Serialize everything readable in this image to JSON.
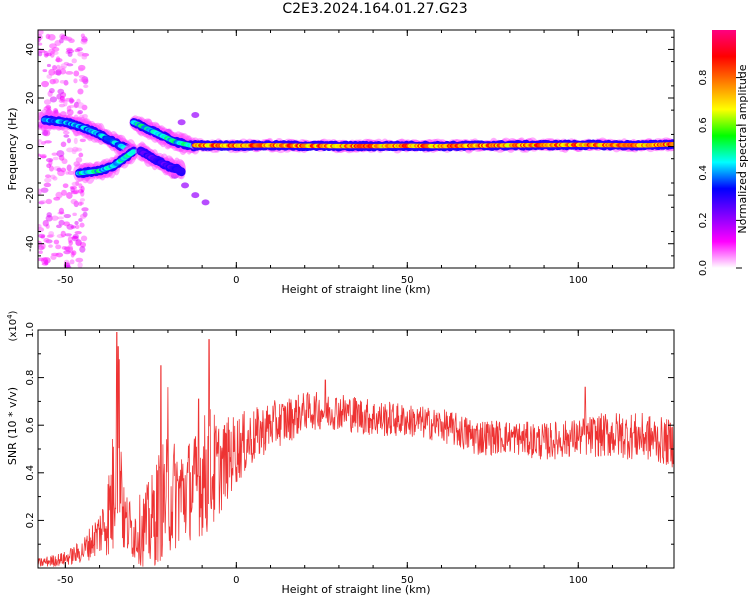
{
  "title": "C2E3.2024.164.01.27.G23",
  "chart_data": [
    {
      "type": "heatmap",
      "xlabel": "Height of straight line (km)",
      "ylabel": "Frequency (Hz)",
      "xlim": [
        -58,
        128
      ],
      "ylim": [
        -50,
        48
      ],
      "xticks": [
        -50,
        0,
        50,
        100
      ],
      "yticks": [
        -40,
        -20,
        0,
        20,
        40
      ],
      "colorbar": {
        "label": "Normalized spectral amplitude",
        "range": [
          0,
          1
        ],
        "ticks": [
          "0.0",
          "0.2",
          "0.4",
          "0.6",
          "0.8"
        ],
        "colors": [
          "#ffffff",
          "#ff00ff",
          "#8000ff",
          "#0000ff",
          "#00ffff",
          "#00ff00",
          "#ffff00",
          "#ff8000",
          "#ff0000",
          "#ff0080"
        ]
      },
      "ridges": [
        {
          "x": [
            -56,
            -50,
            -45,
            -40,
            -36,
            -32,
            -30
          ],
          "y": [
            11,
            10,
            8,
            5,
            2,
            -1,
            -2
          ],
          "level": 0.45
        },
        {
          "x": [
            -46,
            -40,
            -36,
            -33,
            -30
          ],
          "y": [
            -11,
            -10,
            -8,
            -5,
            -2
          ],
          "level": 0.5
        },
        {
          "x": [
            -30,
            -27,
            -24,
            -21,
            -18,
            -15,
            -12
          ],
          "y": [
            10,
            8,
            6,
            4,
            2,
            1,
            0
          ],
          "level": 0.5
        },
        {
          "x": [
            -28,
            -24,
            -20,
            -16
          ],
          "y": [
            -2,
            -5,
            -8,
            -10
          ],
          "level": 0.3
        },
        {
          "x": [
            -12,
            0,
            10,
            20,
            30,
            40,
            50,
            60,
            70,
            80,
            90,
            100,
            110,
            120,
            128
          ],
          "y": [
            0.5,
            0.4,
            0.5,
            0.3,
            0.2,
            0.2,
            0.3,
            0.2,
            0.4,
            0.5,
            0.6,
            0.7,
            0.6,
            0.5,
            1.0
          ],
          "level": 0.85
        }
      ],
      "streaks": [
        {
          "x": [
            -24,
            -21,
            -18,
            -15,
            -12,
            -9
          ],
          "y": [
            -4,
            -8,
            -12,
            -16,
            -20,
            -23
          ],
          "level": 0.2
        },
        {
          "x": [
            -20,
            -16,
            -12
          ],
          "y": [
            6,
            10,
            13
          ],
          "level": 0.2
        }
      ]
    },
    {
      "type": "line",
      "xlabel": "Height of straight line (km)",
      "ylabel": "SNR (10 * v/v)",
      "y_multiplier": "(x10^4)",
      "xlim": [
        -58,
        128
      ],
      "ylim": [
        0,
        1.0
      ],
      "xticks": [
        -50,
        0,
        50,
        100
      ],
      "yticks": [
        0.2,
        0.4,
        0.6,
        0.8,
        1.0
      ],
      "color": "#ee3333",
      "envelope": {
        "x": [
          -58,
          -50,
          -45,
          -40,
          -38,
          -36,
          -35,
          -34,
          -33,
          -30,
          -25,
          -22,
          -20,
          -15,
          -12,
          -10,
          -8,
          -5,
          0,
          5,
          10,
          15,
          20,
          30,
          40,
          50,
          60,
          70,
          80,
          90,
          100,
          110,
          120,
          128
        ],
        "mean": [
          0.02,
          0.04,
          0.07,
          0.15,
          0.2,
          0.3,
          0.6,
          0.55,
          0.2,
          0.15,
          0.18,
          0.28,
          0.3,
          0.32,
          0.35,
          0.38,
          0.4,
          0.42,
          0.5,
          0.55,
          0.6,
          0.62,
          0.66,
          0.66,
          0.63,
          0.62,
          0.6,
          0.55,
          0.55,
          0.53,
          0.55,
          0.56,
          0.55,
          0.52
        ],
        "amp": [
          0.02,
          0.03,
          0.05,
          0.1,
          0.15,
          0.3,
          0.4,
          0.4,
          0.15,
          0.12,
          0.2,
          0.25,
          0.25,
          0.22,
          0.22,
          0.25,
          0.3,
          0.2,
          0.15,
          0.12,
          0.1,
          0.1,
          0.08,
          0.08,
          0.08,
          0.07,
          0.07,
          0.08,
          0.07,
          0.08,
          0.08,
          0.1,
          0.1,
          0.1
        ]
      },
      "peaks": [
        {
          "x": -35,
          "y": 0.99
        },
        {
          "x": -34.5,
          "y": 0.93
        },
        {
          "x": -22,
          "y": 0.85
        },
        {
          "x": -20,
          "y": 0.76
        },
        {
          "x": -8,
          "y": 0.96
        },
        {
          "x": -11,
          "y": 0.71
        },
        {
          "x": 26,
          "y": 0.79
        },
        {
          "x": 102,
          "y": 0.76
        }
      ]
    }
  ]
}
